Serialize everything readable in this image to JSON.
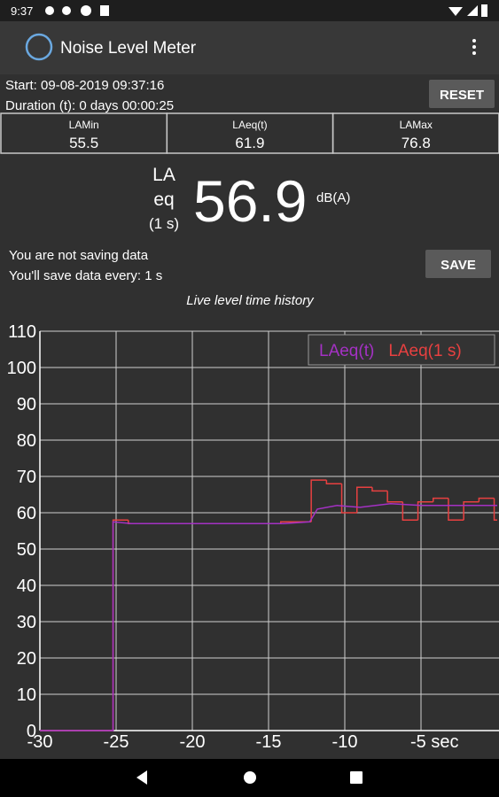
{
  "status_bar": {
    "time": "9:37"
  },
  "app_bar": {
    "title": "Noise Level Meter"
  },
  "session": {
    "start": "Start: 09-08-2019 09:37:16",
    "duration": "Duration (t): 0 days 00:00:25",
    "reset_button": "RESET"
  },
  "stats": [
    {
      "label": "LAMin",
      "value": "55.5"
    },
    {
      "label": "LAeq(t)",
      "value": "61.9"
    },
    {
      "label": "LAMax",
      "value": "76.8"
    }
  ],
  "reading": {
    "label_top": "LA",
    "label_mid": "eq",
    "label_bottom": "(1 s)",
    "value": "56.9",
    "unit": "dB(A)"
  },
  "saving": {
    "status": "You are not saving data",
    "interval": "You'll save data every: 1 s",
    "save_button": "SAVE"
  },
  "chart_data": {
    "type": "line",
    "title": "Live level time history",
    "xlim": [
      -30,
      0
    ],
    "xticks": [
      -30,
      -25,
      -20,
      -15,
      -10,
      {
        "value": -5,
        "label": "-5 sec"
      }
    ],
    "ylim": [
      0,
      110
    ],
    "yticks": [
      0,
      10,
      20,
      30,
      40,
      50,
      60,
      70,
      80,
      90,
      100,
      110
    ],
    "grid": true,
    "legend": "upper right",
    "series": [
      {
        "name": "LAeq(t)",
        "color": "#a431c4",
        "drawstyle": "line",
        "x": [
          -30,
          -25.2,
          -25.2,
          -24,
          -14,
          -12.3,
          -11.8,
          -10.5,
          -9,
          -7,
          -5,
          -3,
          -1,
          0
        ],
        "values": [
          0,
          0,
          57.5,
          57,
          57,
          57.5,
          61,
          62,
          61.5,
          62.5,
          62,
          62,
          62,
          62
        ]
      },
      {
        "name": "LAeq(1 s)",
        "color": "#e84040",
        "drawstyle": "steps-post",
        "x": [
          -30,
          -25.2,
          -24.2,
          -14.2,
          -12.2,
          -11.2,
          -10.2,
          -9.2,
          -8.2,
          -7.2,
          -6.2,
          -5.2,
          -4.2,
          -3.2,
          -2.2,
          -1.2,
          -0.2
        ],
        "values": [
          0,
          58,
          57,
          57.5,
          69,
          68,
          60,
          67,
          66,
          63,
          58,
          63,
          64,
          58,
          63,
          64,
          58
        ]
      }
    ]
  }
}
